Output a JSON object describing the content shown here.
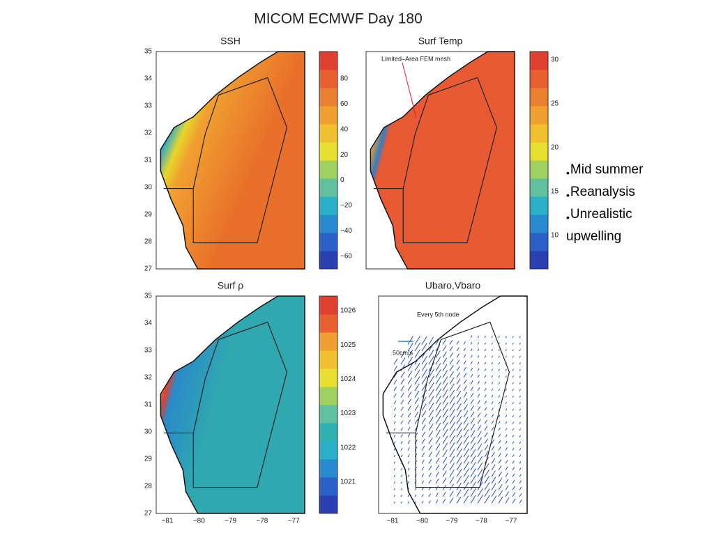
{
  "title": "MICOM ECMWF Day 180",
  "panels": [
    {
      "title": "SSH",
      "colorbar_ticks": [
        "80",
        "60",
        "40",
        "20",
        "0",
        "−20",
        "−40",
        "−60"
      ],
      "annotations": []
    },
    {
      "title": "Surf Temp",
      "colorbar_ticks": [
        "30",
        "25",
        "20",
        "15",
        "10"
      ],
      "annotations": [
        "Limited–Area FEM mesh"
      ]
    },
    {
      "title": "Surf ρ",
      "colorbar_ticks": [
        "1026",
        "1025",
        "1024",
        "1023",
        "1022",
        "1021"
      ],
      "annotations": []
    },
    {
      "title": "Ubaro,Vbaro",
      "colorbar_ticks": [],
      "annotations": [
        "Every 5th node",
        "50cm/s"
      ]
    }
  ],
  "y_axis_ticks": [
    "35",
    "34",
    "33",
    "32",
    "31",
    "30",
    "29",
    "28",
    "27"
  ],
  "x_axis_ticks": [
    "−81",
    "−80",
    "−79",
    "−78",
    "−77"
  ],
  "bullets": [
    "Mid summer",
    "Reanalysis",
    "Unrealistic upwelling"
  ]
}
